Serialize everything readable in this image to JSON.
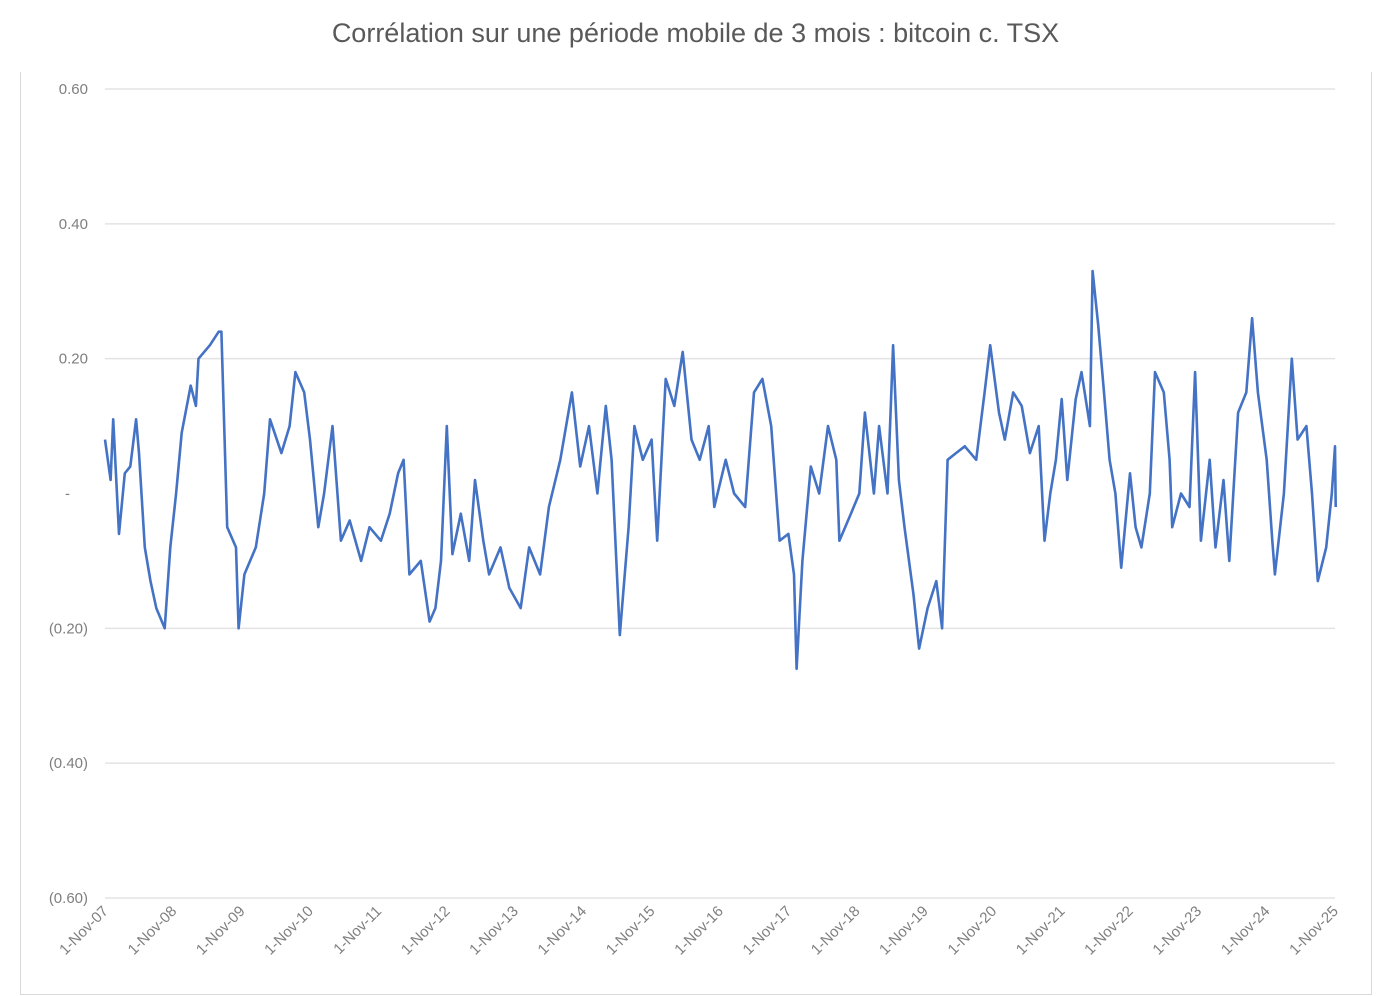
{
  "chart_data": {
    "type": "line",
    "title": "Corrélation sur une période mobile de 3 mois : bitcoin c. TSX",
    "xlabel": "",
    "ylabel": "",
    "ylim": [
      -0.6,
      0.6
    ],
    "xlim": [
      "2007-11-01",
      "2025-11-05"
    ],
    "grid": true,
    "legend": "none",
    "line_color": "#4472C4",
    "y_ticks": [
      {
        "value": 0.6,
        "label": "0.60"
      },
      {
        "value": 0.4,
        "label": "0.40"
      },
      {
        "value": 0.2,
        "label": "0.20"
      },
      {
        "value": 0,
        "label": "-"
      },
      {
        "value": -0.2,
        "label": "(0.20)"
      },
      {
        "value": -0.4,
        "label": "(0.40)"
      },
      {
        "value": -0.6,
        "label": "(0.60)"
      }
    ],
    "x_ticks": [
      {
        "date": "2007-11-01",
        "label": "1-Nov-07"
      },
      {
        "date": "2008-11-01",
        "label": "1-Nov-08"
      },
      {
        "date": "2009-11-01",
        "label": "1-Nov-09"
      },
      {
        "date": "2010-11-01",
        "label": "1-Nov-10"
      },
      {
        "date": "2011-11-01",
        "label": "1-Nov-11"
      },
      {
        "date": "2012-11-01",
        "label": "1-Nov-12"
      },
      {
        "date": "2013-11-01",
        "label": "1-Nov-13"
      },
      {
        "date": "2014-11-01",
        "label": "1-Nov-14"
      },
      {
        "date": "2015-11-01",
        "label": "1-Nov-15"
      },
      {
        "date": "2016-11-01",
        "label": "1-Nov-16"
      },
      {
        "date": "2017-11-01",
        "label": "1-Nov-17"
      },
      {
        "date": "2018-11-01",
        "label": "1-Nov-18"
      },
      {
        "date": "2019-11-01",
        "label": "1-Nov-19"
      },
      {
        "date": "2020-11-01",
        "label": "1-Nov-20"
      },
      {
        "date": "2021-11-01",
        "label": "1-Nov-21"
      },
      {
        "date": "2022-11-01",
        "label": "1-Nov-22"
      },
      {
        "date": "2023-11-01",
        "label": "1-Nov-23"
      },
      {
        "date": "2024-11-01",
        "label": "1-Nov-24"
      },
      {
        "date": "2025-11-01",
        "label": "1-Nov-25"
      }
    ],
    "series": [
      {
        "x": [
          "2007-11-01",
          "2007-12-01",
          "2007-12-15",
          "2008-01-15",
          "2008-02-15",
          "2008-03-15",
          "2008-04-15",
          "2008-05-01",
          "2008-06-01",
          "2008-07-01",
          "2008-08-01",
          "2008-09-15",
          "2008-10-15",
          "2008-11-15",
          "2008-12-15",
          "2009-02-01",
          "2009-03-01",
          "2009-03-15",
          "2009-05-15",
          "2009-07-01",
          "2009-07-15",
          "2009-08-15",
          "2009-10-01",
          "2009-10-15",
          "2009-11-15",
          "2010-01-15",
          "2010-03-01",
          "2010-04-01",
          "2010-06-01",
          "2010-07-15",
          "2010-08-15",
          "2010-10-01",
          "2010-11-01",
          "2010-12-15",
          "2011-01-15",
          "2011-03-01",
          "2011-04-15",
          "2011-06-01",
          "2011-08-01",
          "2011-09-15",
          "2011-11-15",
          "2012-01-01",
          "2012-02-15",
          "2012-03-15",
          "2012-04-15",
          "2012-06-15",
          "2012-08-01",
          "2012-09-01",
          "2012-10-01",
          "2012-11-01",
          "2012-12-01",
          "2013-01-15",
          "2013-03-01",
          "2013-04-01",
          "2013-05-15",
          "2013-06-15",
          "2013-08-15",
          "2013-10-01",
          "2013-12-01",
          "2014-01-15",
          "2014-03-15",
          "2014-05-01",
          "2014-07-01",
          "2014-08-01",
          "2014-09-01",
          "2014-10-15",
          "2014-12-01",
          "2015-01-15",
          "2015-03-01",
          "2015-04-01",
          "2015-05-15",
          "2015-07-01",
          "2015-08-01",
          "2015-09-15",
          "2015-11-01",
          "2015-12-01",
          "2016-01-15",
          "2016-03-01",
          "2016-04-15",
          "2016-06-01",
          "2016-07-15",
          "2016-09-01",
          "2016-10-01",
          "2016-12-01",
          "2017-01-15",
          "2017-03-15",
          "2017-05-01",
          "2017-06-15",
          "2017-08-01",
          "2017-09-15",
          "2017-11-01",
          "2017-12-01",
          "2017-12-15",
          "2018-01-15",
          "2018-03-01",
          "2018-04-15",
          "2018-06-01",
          "2018-07-15",
          "2018-08-01",
          "2018-10-01",
          "2018-11-15",
          "2018-12-15",
          "2019-02-01",
          "2019-03-01",
          "2019-04-15",
          "2019-05-15",
          "2019-06-15",
          "2019-07-15",
          "2019-09-01",
          "2019-10-01",
          "2019-11-15",
          "2020-01-01",
          "2020-02-01",
          "2020-03-01",
          "2020-04-15",
          "2020-06-01",
          "2020-08-01",
          "2020-09-15",
          "2020-10-15",
          "2020-12-01",
          "2021-01-01",
          "2021-02-15",
          "2021-04-01",
          "2021-05-15",
          "2021-07-01",
          "2021-08-01",
          "2021-09-01",
          "2021-10-01",
          "2021-11-01",
          "2021-12-01",
          "2022-01-15",
          "2022-02-15",
          "2022-04-01",
          "2022-04-15",
          "2022-05-15",
          "2022-06-15",
          "2022-07-15",
          "2022-08-15",
          "2022-09-15",
          "2022-11-01",
          "2022-12-01",
          "2023-01-01",
          "2023-02-15",
          "2023-03-15",
          "2023-05-01",
          "2023-06-01",
          "2023-06-15",
          "2023-08-01",
          "2023-09-15",
          "2023-10-15",
          "2023-11-15",
          "2024-01-01",
          "2024-02-01",
          "2024-03-15",
          "2024-04-15",
          "2024-06-01",
          "2024-07-15",
          "2024-08-15",
          "2024-09-15",
          "2024-11-01",
          "2024-12-01",
          "2024-12-15",
          "2025-02-01",
          "2025-03-15",
          "2025-04-15",
          "2025-06-01",
          "2025-07-01",
          "2025-08-01",
          "2025-09-15",
          "2025-10-15",
          "2025-11-01",
          "2025-11-05"
        ],
        "y": [
          0.08,
          0.02,
          0.11,
          -0.06,
          0.03,
          0.04,
          0.11,
          0.06,
          -0.08,
          -0.13,
          -0.17,
          -0.2,
          -0.08,
          0.0,
          0.09,
          0.16,
          0.13,
          0.2,
          0.22,
          0.24,
          0.24,
          -0.05,
          -0.08,
          -0.2,
          -0.12,
          -0.08,
          0.0,
          0.11,
          0.06,
          0.1,
          0.18,
          0.15,
          0.08,
          -0.05,
          0.0,
          0.1,
          -0.07,
          -0.04,
          -0.1,
          -0.05,
          -0.07,
          -0.03,
          0.03,
          0.05,
          -0.12,
          -0.1,
          -0.19,
          -0.17,
          -0.1,
          0.1,
          -0.09,
          -0.03,
          -0.1,
          0.02,
          -0.07,
          -0.12,
          -0.08,
          -0.14,
          -0.17,
          -0.08,
          -0.12,
          -0.02,
          0.05,
          0.1,
          0.15,
          0.04,
          0.1,
          0.0,
          0.13,
          0.05,
          -0.21,
          -0.05,
          0.1,
          0.05,
          0.08,
          -0.07,
          0.17,
          0.13,
          0.21,
          0.08,
          0.05,
          0.1,
          -0.02,
          0.05,
          0.0,
          -0.02,
          0.15,
          0.17,
          0.1,
          -0.07,
          -0.06,
          -0.12,
          -0.26,
          -0.1,
          0.04,
          0.0,
          0.1,
          0.05,
          -0.07,
          -0.03,
          0.0,
          0.12,
          0.0,
          0.1,
          0.0,
          0.22,
          0.02,
          -0.05,
          -0.15,
          -0.23,
          -0.17,
          -0.13,
          -0.2,
          0.05,
          0.06,
          0.07,
          0.05,
          0.15,
          0.22,
          0.12,
          0.08,
          0.15,
          0.13,
          0.06,
          0.1,
          -0.07,
          0.0,
          0.05,
          0.14,
          0.02,
          0.14,
          0.18,
          0.1,
          0.33,
          0.25,
          0.15,
          0.05,
          0.0,
          -0.11,
          0.03,
          -0.05,
          -0.08,
          0.0,
          0.18,
          0.15,
          0.05,
          -0.05,
          0.0,
          -0.02,
          0.18,
          -0.07,
          0.05,
          -0.08,
          0.02,
          -0.1,
          0.12,
          0.15,
          0.26,
          0.15,
          0.05,
          -0.07,
          -0.12,
          0.0,
          0.2,
          0.08,
          0.1,
          0.0,
          -0.13,
          -0.08,
          0.0,
          0.07,
          -0.02
        ]
      }
    ]
  }
}
